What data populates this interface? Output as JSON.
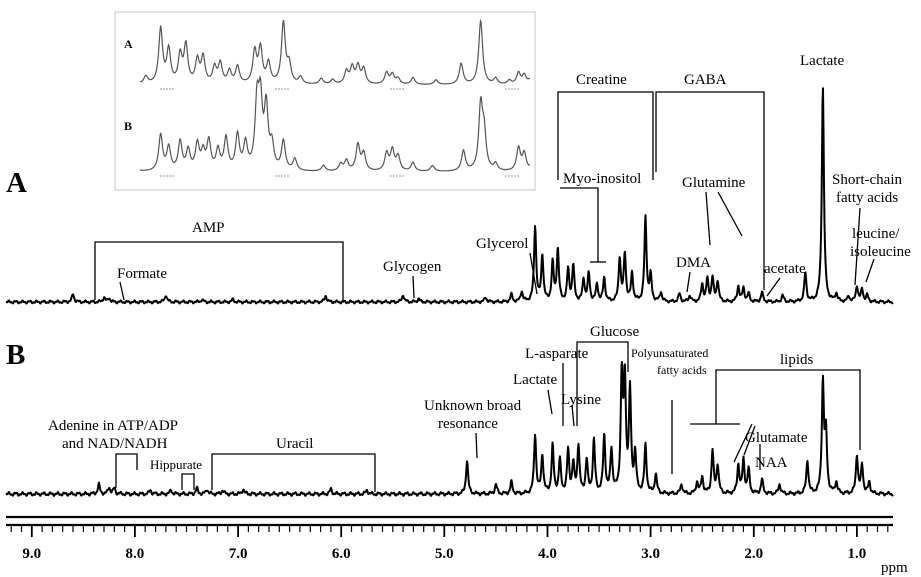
{
  "chart_data": {
    "type": "line",
    "x_unit": "ppm",
    "x_range": [
      9.25,
      0.65
    ],
    "x_reversed": true,
    "x_ticks": [
      "9.0",
      "8.0",
      "7.0",
      "6.0",
      "5.0",
      "4.0",
      "3.0",
      "2.0",
      "1.0"
    ],
    "x_tick_values": [
      9.0,
      8.0,
      7.0,
      6.0,
      5.0,
      4.0,
      3.0,
      2.0,
      1.0
    ],
    "series": [
      {
        "name": "A",
        "peaks": [
          {
            "ppm": 8.6,
            "h": 0.1
          },
          {
            "ppm": 8.3,
            "h": 0.06
          },
          {
            "ppm": 8.25,
            "h": 0.05
          },
          {
            "ppm": 7.7,
            "h": 0.09
          },
          {
            "ppm": 7.35,
            "h": 0.03
          },
          {
            "ppm": 7.05,
            "h": 0.03
          },
          {
            "ppm": 6.15,
            "h": 0.08
          },
          {
            "ppm": 5.4,
            "h": 0.09
          },
          {
            "ppm": 5.25,
            "h": 0.04
          },
          {
            "ppm": 4.6,
            "h": 0.06
          },
          {
            "ppm": 4.35,
            "h": 0.09
          },
          {
            "ppm": 4.25,
            "h": 0.13
          },
          {
            "ppm": 4.12,
            "h": 0.95
          },
          {
            "ppm": 4.05,
            "h": 0.58
          },
          {
            "ppm": 3.95,
            "h": 0.48
          },
          {
            "ppm": 3.9,
            "h": 0.65
          },
          {
            "ppm": 3.8,
            "h": 0.4
          },
          {
            "ppm": 3.75,
            "h": 0.45
          },
          {
            "ppm": 3.65,
            "h": 0.28
          },
          {
            "ppm": 3.6,
            "h": 0.35
          },
          {
            "ppm": 3.52,
            "h": 0.22
          },
          {
            "ppm": 3.45,
            "h": 0.3
          },
          {
            "ppm": 3.3,
            "h": 0.55
          },
          {
            "ppm": 3.25,
            "h": 0.6
          },
          {
            "ppm": 3.18,
            "h": 0.35
          },
          {
            "ppm": 3.05,
            "h": 1.05
          },
          {
            "ppm": 3.0,
            "h": 0.32
          },
          {
            "ppm": 2.9,
            "h": 0.12
          },
          {
            "ppm": 2.72,
            "h": 0.1
          },
          {
            "ppm": 2.62,
            "h": 0.08
          },
          {
            "ppm": 2.5,
            "h": 0.22
          },
          {
            "ppm": 2.45,
            "h": 0.28
          },
          {
            "ppm": 2.4,
            "h": 0.3
          },
          {
            "ppm": 2.35,
            "h": 0.26
          },
          {
            "ppm": 2.15,
            "h": 0.2
          },
          {
            "ppm": 2.1,
            "h": 0.17
          },
          {
            "ppm": 2.05,
            "h": 0.1
          },
          {
            "ppm": 1.92,
            "h": 0.12
          },
          {
            "ppm": 1.72,
            "h": 0.08
          },
          {
            "ppm": 1.5,
            "h": 0.36
          },
          {
            "ppm": 1.33,
            "h": 2.7
          },
          {
            "ppm": 1.2,
            "h": 0.1
          },
          {
            "ppm": 1.08,
            "h": 0.07
          },
          {
            "ppm": 1.0,
            "h": 0.2
          },
          {
            "ppm": 0.95,
            "h": 0.16
          },
          {
            "ppm": 0.9,
            "h": 0.08
          }
        ]
      },
      {
        "name": "B",
        "peaks": [
          {
            "ppm": 8.35,
            "h": 0.1
          },
          {
            "ppm": 8.25,
            "h": 0.07
          },
          {
            "ppm": 8.2,
            "h": 0.06
          },
          {
            "ppm": 7.85,
            "h": 0.04
          },
          {
            "ppm": 7.65,
            "h": 0.04
          },
          {
            "ppm": 7.4,
            "h": 0.06
          },
          {
            "ppm": 7.3,
            "h": 0.05
          },
          {
            "ppm": 7.15,
            "h": 0.04
          },
          {
            "ppm": 6.95,
            "h": 0.05
          },
          {
            "ppm": 6.1,
            "h": 0.05
          },
          {
            "ppm": 5.75,
            "h": 0.04
          },
          {
            "ppm": 4.78,
            "h": 0.35
          },
          {
            "ppm": 4.5,
            "h": 0.1
          },
          {
            "ppm": 4.35,
            "h": 0.12
          },
          {
            "ppm": 4.12,
            "h": 0.62
          },
          {
            "ppm": 4.05,
            "h": 0.4
          },
          {
            "ppm": 3.95,
            "h": 0.5
          },
          {
            "ppm": 3.88,
            "h": 0.35
          },
          {
            "ppm": 3.8,
            "h": 0.45
          },
          {
            "ppm": 3.75,
            "h": 0.3
          },
          {
            "ppm": 3.7,
            "h": 0.5
          },
          {
            "ppm": 3.62,
            "h": 0.35
          },
          {
            "ppm": 3.55,
            "h": 0.55
          },
          {
            "ppm": 3.45,
            "h": 0.6
          },
          {
            "ppm": 3.38,
            "h": 0.45
          },
          {
            "ppm": 3.28,
            "h": 1.2
          },
          {
            "ppm": 3.25,
            "h": 1.15
          },
          {
            "ppm": 3.2,
            "h": 1.05
          },
          {
            "ppm": 3.15,
            "h": 0.4
          },
          {
            "ppm": 3.05,
            "h": 0.5
          },
          {
            "ppm": 2.95,
            "h": 0.2
          },
          {
            "ppm": 2.7,
            "h": 0.1
          },
          {
            "ppm": 2.55,
            "h": 0.12
          },
          {
            "ppm": 2.5,
            "h": 0.18
          },
          {
            "ppm": 2.4,
            "h": 0.45
          },
          {
            "ppm": 2.35,
            "h": 0.3
          },
          {
            "ppm": 2.15,
            "h": 0.3
          },
          {
            "ppm": 2.1,
            "h": 0.35
          },
          {
            "ppm": 2.05,
            "h": 0.25
          },
          {
            "ppm": 1.92,
            "h": 0.15
          },
          {
            "ppm": 1.75,
            "h": 0.1
          },
          {
            "ppm": 1.48,
            "h": 0.35
          },
          {
            "ppm": 1.33,
            "h": 1.15
          },
          {
            "ppm": 1.3,
            "h": 0.6
          },
          {
            "ppm": 1.2,
            "h": 0.12
          },
          {
            "ppm": 1.0,
            "h": 0.4
          },
          {
            "ppm": 0.95,
            "h": 0.3
          },
          {
            "ppm": 0.88,
            "h": 0.12
          }
        ]
      }
    ],
    "panel_labels": [
      "A",
      "B"
    ],
    "inset": {
      "labels": [
        "A",
        "B"
      ]
    },
    "annotations_A": [
      "AMP",
      "Formate",
      "Glycogen",
      "Glycerol",
      "Creatine",
      "Myo-inositol",
      "GABA",
      "Glutamine",
      "DMA",
      "acetate",
      "Lactate",
      "Short-chain",
      "fatty acids",
      "leucine/",
      "isoleucine"
    ],
    "annotations_B": [
      "Adenine in ATP/ADP",
      "and NAD/NADH",
      "Hippurate",
      "Uracil",
      "Unknown broad",
      "resonance",
      "Lactate",
      "L-asparate",
      "Lysine",
      "Glucose",
      "Polyunsaturated",
      "fatty acids",
      "lipids",
      "Glutamate",
      "NAA"
    ]
  }
}
